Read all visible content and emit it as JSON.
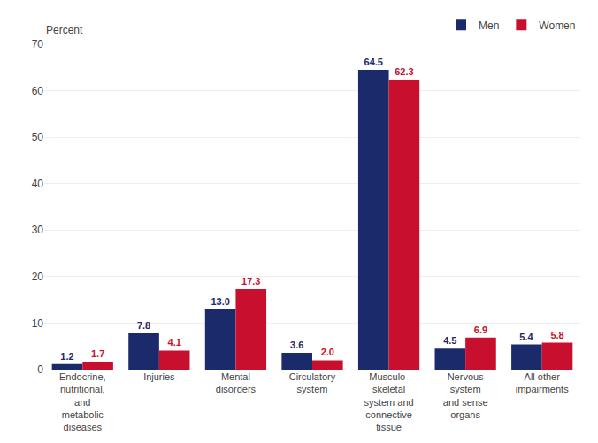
{
  "chart_data": {
    "type": "bar",
    "ylabel": "Percent",
    "categories": [
      "Endocrine,\nnutritional,\nand\nmetabolic\ndiseases",
      "Injuries",
      "Mental\ndisorders",
      "Circulatory\nsystem",
      "Musculo-\nskeletal\nsystem and\nconnective\ntissue",
      "Nervous\nsystem\nand sense\norgans",
      "All other\nimpairments"
    ],
    "series": [
      {
        "name": "Men",
        "color": "#1B2A6B",
        "values": [
          1.2,
          7.8,
          13.0,
          3.6,
          64.5,
          4.5,
          5.4
        ],
        "value_labels": [
          "1.2",
          "7.8",
          "13.0",
          "3.6",
          "64.5",
          "4.5",
          "5.4"
        ]
      },
      {
        "name": "Women",
        "color": "#C8102E",
        "values": [
          1.7,
          4.1,
          17.3,
          2.0,
          62.3,
          6.9,
          5.8
        ],
        "value_labels": [
          "1.7",
          "4.1",
          "17.3",
          "2.0",
          "62.3",
          "6.9",
          "5.8"
        ]
      }
    ],
    "ylim": [
      0,
      70
    ],
    "yticks": [
      0,
      10,
      20,
      30,
      40,
      50,
      60,
      70
    ],
    "grid": true,
    "legend": "upper right",
    "data_labels": true
  }
}
